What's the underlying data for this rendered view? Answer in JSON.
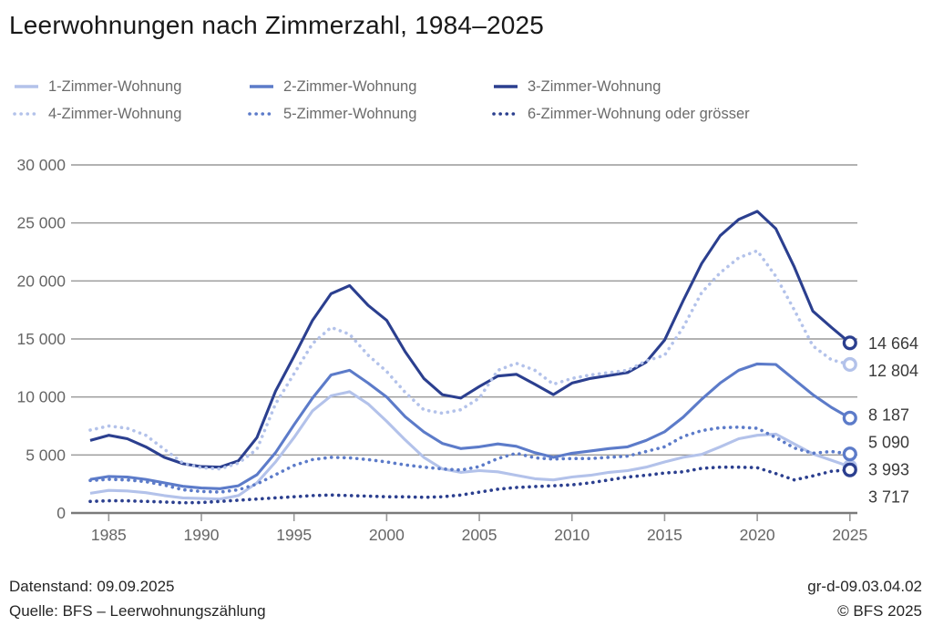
{
  "title": "Leerwohnungen nach Zimmerzahl, 1984–2025",
  "footer": {
    "datenstand": "Datenstand: 09.09.2025",
    "quelle": "Quelle: BFS – Leerwohnungszählung",
    "code": "gr-d-09.03.04.02",
    "copyright": "© BFS 2025"
  },
  "colors": {
    "light_blue": "#b3c2ea",
    "medium_blue": "#5c7bc9",
    "dark_blue": "#2b3f8f",
    "grid": "#999999",
    "axis": "#7a7a7a",
    "tick_text": "#666666",
    "end_label_text": "#3a3a3a"
  },
  "chart_data": {
    "type": "line",
    "title": "Leerwohnungen nach Zimmerzahl, 1984–2025",
    "xlabel": "",
    "ylabel": "",
    "x_start": 1984,
    "x_end": 2025,
    "ylim": [
      0,
      30000
    ],
    "ytick_step": 5000,
    "ytick_labels": [
      "0",
      "5 000",
      "10 000",
      "15 000",
      "20 000",
      "25 000",
      "30 000"
    ],
    "xticks": [
      1985,
      1990,
      1995,
      2000,
      2005,
      2010,
      2015,
      2020,
      2025
    ],
    "grid": true,
    "legend_position": "top",
    "series": [
      {
        "name": "1-Zimmer-Wohnung",
        "style": "solid",
        "color": "#b3c2ea",
        "end_label": "3 993",
        "values": [
          1700,
          1950,
          1900,
          1750,
          1500,
          1300,
          1250,
          1200,
          1500,
          2600,
          4400,
          6500,
          8800,
          10100,
          10450,
          9400,
          7900,
          6300,
          4800,
          3800,
          3500,
          3650,
          3550,
          3250,
          2950,
          2850,
          3100,
          3250,
          3500,
          3650,
          3950,
          4400,
          4800,
          5050,
          5700,
          6400,
          6700,
          6800,
          5950,
          5100,
          4550,
          3993
        ]
      },
      {
        "name": "2-Zimmer-Wohnung",
        "style": "solid",
        "color": "#5c7bc9",
        "end_label": "8 187",
        "values": [
          2900,
          3150,
          3100,
          2900,
          2600,
          2300,
          2150,
          2100,
          2350,
          3300,
          5200,
          7600,
          9900,
          11900,
          12300,
          11200,
          10000,
          8300,
          7000,
          6000,
          5550,
          5700,
          5950,
          5750,
          5200,
          4800,
          5150,
          5350,
          5550,
          5700,
          6250,
          7000,
          8250,
          9800,
          11200,
          12300,
          12850,
          12800,
          11500,
          10200,
          9100,
          8187
        ]
      },
      {
        "name": "3-Zimmer-Wohnung",
        "style": "solid",
        "color": "#2b3f8f",
        "end_label": "14 664",
        "values": [
          6250,
          6700,
          6400,
          5700,
          4800,
          4250,
          4000,
          3950,
          4500,
          6500,
          10500,
          13500,
          16600,
          18900,
          19600,
          17900,
          16600,
          13900,
          11600,
          10200,
          9900,
          10900,
          11800,
          11950,
          11100,
          10200,
          11200,
          11600,
          11850,
          12100,
          13000,
          14900,
          18300,
          21500,
          23900,
          25300,
          26000,
          24500,
          21200,
          17400,
          16000,
          14664
        ]
      },
      {
        "name": "4-Zimmer-Wohnung",
        "style": "dotted",
        "color": "#b3c2ea",
        "end_label": "12 804",
        "values": [
          7150,
          7500,
          7300,
          6700,
          5500,
          4300,
          3900,
          3800,
          4300,
          5500,
          9400,
          12000,
          14600,
          16000,
          15400,
          13600,
          12200,
          10400,
          8900,
          8600,
          8900,
          9900,
          12300,
          12900,
          12300,
          11100,
          11600,
          11900,
          12100,
          12300,
          13100,
          13600,
          16000,
          19000,
          20700,
          22000,
          22600,
          20400,
          17500,
          14400,
          13200,
          12804
        ]
      },
      {
        "name": "5-Zimmer-Wohnung",
        "style": "dotted",
        "color": "#5c7bc9",
        "end_label": "5 090",
        "values": [
          2800,
          2900,
          2850,
          2700,
          2400,
          2000,
          1850,
          1800,
          2000,
          2500,
          3300,
          4100,
          4600,
          4800,
          4750,
          4600,
          4400,
          4150,
          3950,
          3800,
          3700,
          4000,
          4700,
          5150,
          4750,
          4650,
          4700,
          4700,
          4800,
          4900,
          5300,
          5700,
          6600,
          7100,
          7350,
          7400,
          7300,
          6500,
          5600,
          5150,
          5300,
          5090
        ]
      },
      {
        "name": "6-Zimmer-Wohnung oder grösser",
        "style": "dotted",
        "color": "#2b3f8f",
        "end_label": "3 717",
        "values": [
          1000,
          1050,
          1050,
          1000,
          950,
          880,
          900,
          1000,
          1100,
          1200,
          1300,
          1400,
          1500,
          1550,
          1500,
          1450,
          1400,
          1400,
          1350,
          1400,
          1550,
          1800,
          2050,
          2200,
          2280,
          2350,
          2430,
          2600,
          2850,
          3100,
          3250,
          3450,
          3550,
          3850,
          3950,
          3950,
          3900,
          3400,
          2850,
          3200,
          3600,
          3717
        ]
      }
    ]
  }
}
